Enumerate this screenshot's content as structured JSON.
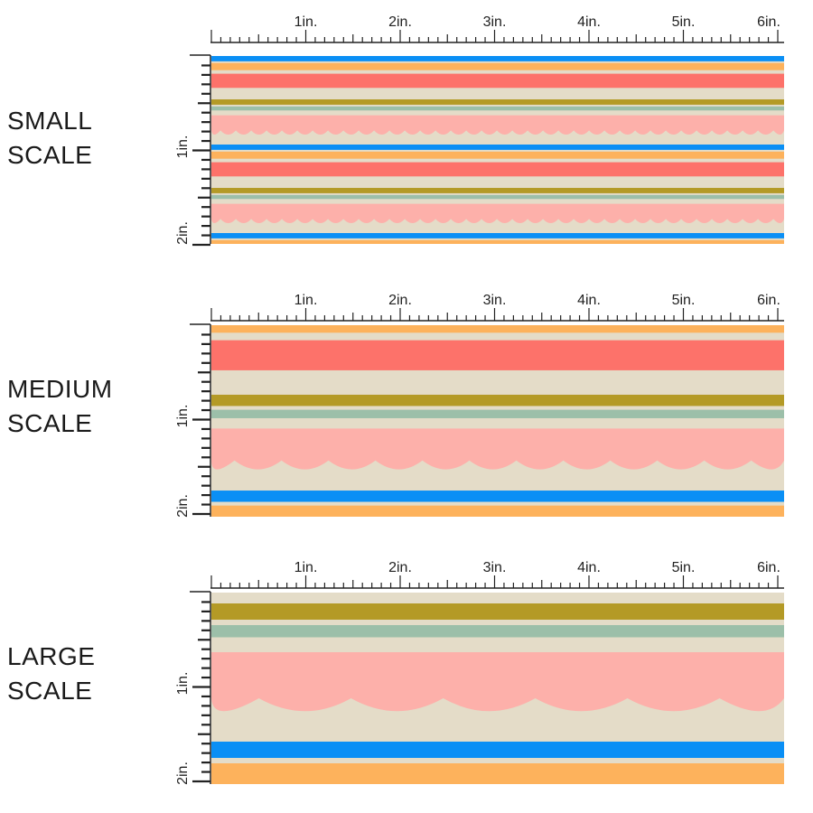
{
  "ruler": {
    "top_labels": [
      "1in.",
      "2in.",
      "3in.",
      "4in.",
      "5in.",
      "6in."
    ],
    "side_labels": [
      "1in.",
      "2in."
    ]
  },
  "colors": {
    "cream": "#e4dcc8",
    "blue": "#0a8ff5",
    "orange": "#fdb25c",
    "red": "#fd726a",
    "olive": "#b49a26",
    "sage": "#9cbfa9",
    "pink": "#fdb0aa",
    "ruler": "#222222"
  },
  "stripe_sequence": [
    "blue",
    "orange",
    "red",
    "olive",
    "sage",
    "pink-scallop"
  ],
  "panels": [
    {
      "id": "small",
      "line1": "SMALL",
      "line2": "SCALE"
    },
    {
      "id": "medium",
      "line1": "MEDIUM",
      "line2": "SCALE"
    },
    {
      "id": "large",
      "line1": "LARGE",
      "line2": "SCALE"
    }
  ]
}
